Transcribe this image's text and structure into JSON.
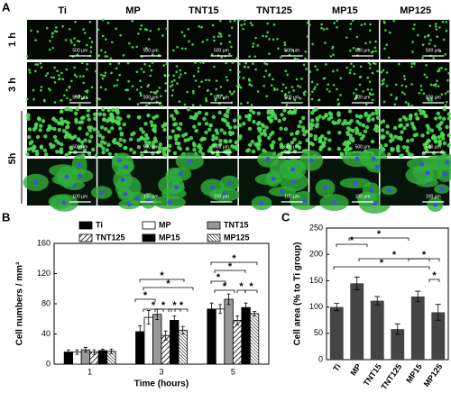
{
  "panel_a": {
    "label": "A",
    "columns": [
      "Ti",
      "MP",
      "TNT15",
      "TNT125",
      "MP15",
      "MP125"
    ],
    "rows": [
      "1 h",
      "3 h",
      "5h"
    ],
    "scale_bars": [
      "500 μm",
      "100 μm"
    ]
  },
  "chart_data": [
    {
      "type": "bar",
      "panel_label": "B",
      "x_label": "Time (hours)",
      "y_label": "Cell numbers / mm³",
      "categories": [
        "1",
        "3",
        "5"
      ],
      "ylim": [
        0,
        160
      ],
      "yticks": [
        0,
        40,
        80,
        120,
        160
      ],
      "legend": "top",
      "significance_marker": "*",
      "series": [
        {
          "name": "Ti",
          "color": "#000000",
          "values": [
            16,
            43,
            73
          ],
          "errors": [
            3,
            8,
            8
          ]
        },
        {
          "name": "MP",
          "color": "#ffffff",
          "values": [
            16,
            62,
            73
          ],
          "errors": [
            3,
            9,
            6
          ]
        },
        {
          "name": "TNT15",
          "color": "#999999",
          "values": [
            19,
            66,
            86
          ],
          "errors": [
            3,
            7,
            7
          ]
        },
        {
          "name": "TNT125",
          "color": "#ffffff",
          "hatch": "sparse",
          "values": [
            16,
            38,
            58
          ],
          "errors": [
            3,
            6,
            6
          ]
        },
        {
          "name": "MP15",
          "color": "#000000",
          "values": [
            18,
            58,
            75
          ],
          "errors": [
            2,
            6,
            6
          ]
        },
        {
          "name": "MP125",
          "color": "#ffffff",
          "hatch": "dense",
          "values": [
            17,
            45,
            67
          ],
          "errors": [
            3,
            5,
            3
          ]
        }
      ]
    },
    {
      "type": "bar",
      "panel_label": "C",
      "y_label": "Cell area (% to Ti group)",
      "categories": [
        "Ti",
        "MP",
        "TNT15",
        "TNT125",
        "MP15",
        "MP125"
      ],
      "values": [
        100,
        145,
        112,
        58,
        120,
        90
      ],
      "errors": [
        7,
        12,
        8,
        10,
        10,
        15
      ],
      "color": "#444444",
      "ylim": [
        0,
        250
      ],
      "yticks": [
        0,
        50,
        100,
        150,
        200,
        250
      ],
      "significance_marker": "*"
    }
  ]
}
